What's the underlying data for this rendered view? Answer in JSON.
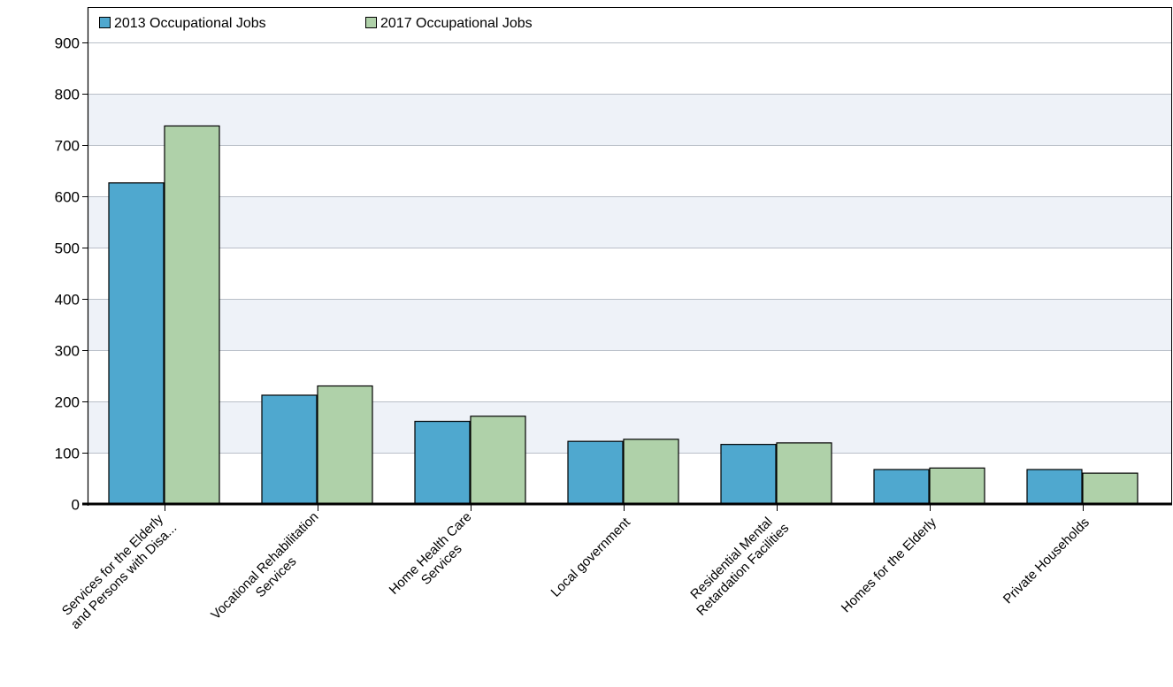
{
  "chart_data": {
    "type": "bar",
    "categories": [
      [
        "Services for the Elderly",
        "and Persons with Disa..."
      ],
      [
        "Vocational Rehabilitation",
        "Services"
      ],
      [
        "Home Health Care",
        "Services"
      ],
      [
        "Local government"
      ],
      [
        "Residential Mental",
        "Retardation Facilities"
      ],
      [
        "Homes for the Elderly"
      ],
      [
        "Private Households"
      ]
    ],
    "series": [
      {
        "name": "2013 Occupational Jobs",
        "color": "#4fa8cf",
        "values": [
          627,
          213,
          162,
          123,
          117,
          68,
          68
        ]
      },
      {
        "name": "2017 Occupational Jobs",
        "color": "#afd1a9",
        "values": [
          738,
          231,
          172,
          127,
          120,
          71,
          61
        ]
      }
    ],
    "yticks": [
      0,
      100,
      200,
      300,
      400,
      500,
      600,
      700,
      800,
      900
    ],
    "ylim": [
      0,
      900
    ],
    "grid": true,
    "legend_position": "top-left",
    "title": "",
    "xlabel": "",
    "ylabel": ""
  }
}
